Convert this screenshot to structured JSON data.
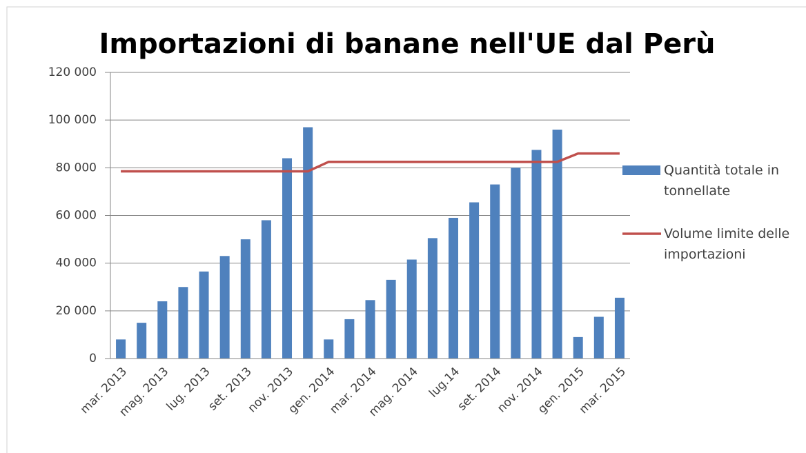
{
  "chart_data": {
    "type": "bar_line",
    "title": "Importazioni di banane nell'UE dal Perù",
    "categories": [
      "mar. 2013",
      null,
      "mag. 2013",
      null,
      "lug. 2013",
      null,
      "set. 2013",
      null,
      "nov. 2013",
      null,
      "gen. 2014",
      null,
      "mar. 2014",
      null,
      "mag. 2014",
      null,
      "lug.14",
      null,
      "set. 2014",
      null,
      "nov. 2014",
      null,
      "gen. 2015",
      null,
      "mar. 2015"
    ],
    "series": [
      {
        "name": "Quantità totale in tonnellate",
        "color": "#4f81bd",
        "type": "bar",
        "values": [
          8000,
          15000,
          24000,
          30000,
          36500,
          43000,
          50000,
          58000,
          84000,
          97000,
          8000,
          16500,
          24500,
          33000,
          41500,
          50500,
          59000,
          65500,
          73000,
          80000,
          87500,
          96000,
          9000,
          17500,
          25500
        ]
      },
      {
        "name": "Volume limite delle importazioni",
        "color": "#c0504d",
        "type": "line",
        "values": [
          78500,
          78500,
          78500,
          78500,
          78500,
          78500,
          78500,
          78500,
          78500,
          78500,
          82500,
          82500,
          82500,
          82500,
          82500,
          82500,
          82500,
          82500,
          82500,
          82500,
          82500,
          82500,
          86000,
          86000,
          86000
        ]
      }
    ],
    "ylim": [
      0,
      120000
    ],
    "yticks": [
      0,
      {
        "value": 20000,
        "label": "20 000"
      },
      {
        "value": 40000,
        "label": "40 000"
      },
      {
        "value": 60000,
        "label": "60 000"
      },
      {
        "value": 80000,
        "label": "80 000"
      },
      {
        "value": 100000,
        "label": "100 000"
      },
      {
        "value": 120000,
        "label": "120 000"
      }
    ],
    "grid": true,
    "legend": "right"
  }
}
